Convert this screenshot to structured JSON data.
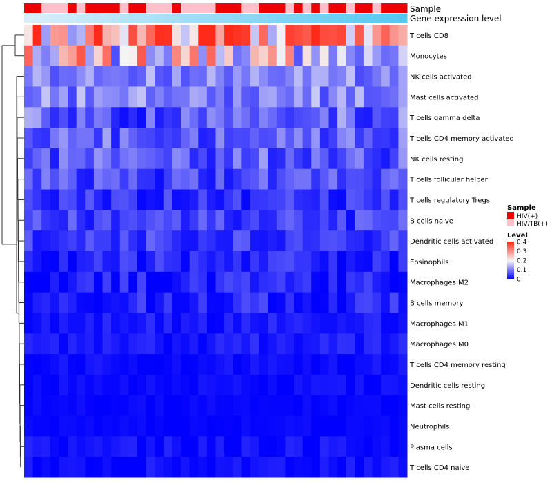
{
  "chart_data": {
    "type": "heatmap",
    "title": "",
    "annotation_labels": [
      "Sample",
      "Gene expression level"
    ],
    "rows": [
      "T cells CD8",
      "Monocytes",
      "NK cells activated",
      "Mast cells activated",
      "T cells gamma delta",
      "T cells CD4 memory activated",
      "NK cells resting",
      "T cells follicular helper",
      "T cells regulatory  Tregs",
      "B cells naive",
      "Dendritic cells activated",
      "Eosinophils",
      "Macrophages M2",
      "B cells memory",
      "Macrophages M1",
      "Macrophages M0",
      "T cells CD4 memory resting",
      "Dendritic cells resting",
      "Mast cells resting",
      "Neutrophils",
      "Plasma cells",
      "T cells CD4 naive"
    ],
    "n_samples": 44,
    "sample_groups": [
      "HIV(+)",
      "HIV(+)",
      "HIV/TB(+)",
      "HIV/TB(+)",
      "HIV/TB(+)",
      "HIV(+)",
      "HIV/TB(+)",
      "HIV(+)",
      "HIV(+)",
      "HIV(+)",
      "HIV(+)",
      "HIV/TB(+)",
      "HIV(+)",
      "HIV(+)",
      "HIV/TB(+)",
      "HIV/TB(+)",
      "HIV/TB(+)",
      "HIV(+)",
      "HIV/TB(+)",
      "HIV/TB(+)",
      "HIV/TB(+)",
      "HIV/TB(+)",
      "HIV(+)",
      "HIV(+)",
      "HIV(+)",
      "HIV/TB(+)",
      "HIV/TB(+)",
      "HIV(+)",
      "HIV(+)",
      "HIV(+)",
      "HIV/TB(+)",
      "HIV(+)",
      "HIV/TB(+)",
      "HIV(+)",
      "HIV/TB(+)",
      "HIV(+)",
      "HIV(+)",
      "HIV/TB(+)",
      "HIV(+)",
      "HIV(+)",
      "HIV/TB(+)",
      "HIV(+)",
      "HIV(+)",
      "HIV(+)"
    ],
    "legend": {
      "sample_title": "Sample",
      "groups": [
        {
          "label": "HIV(+)",
          "color": "#ee0000"
        },
        {
          "label": "HIV/TB(+)",
          "color": "#ffc0cb"
        }
      ],
      "level_title": "Level",
      "level_ticks": [
        "0.4",
        "0.3",
        "0.2",
        "0.1",
        "0"
      ],
      "level_range": [
        0,
        0.4
      ],
      "position": "right"
    },
    "colors": {
      "low": "#0000ff",
      "mid": "#f4f4f4",
      "high": "#ff2a1a",
      "expression_bar_start": "#d8eefa",
      "expression_bar_end": "#55c8f0"
    },
    "row_levels": [
      0.27,
      0.21,
      0.11,
      0.11,
      0.08,
      0.08,
      0.07,
      0.06,
      0.04,
      0.05,
      0.05,
      0.03,
      0.025,
      0.03,
      0.02,
      0.02,
      0.01,
      0.008,
      0.004,
      0.004,
      0.01,
      0.01
    ],
    "row_spread": [
      0.12,
      0.11,
      0.035,
      0.04,
      0.05,
      0.04,
      0.045,
      0.035,
      0.025,
      0.03,
      0.025,
      0.025,
      0.025,
      0.025,
      0.015,
      0.015,
      0.01,
      0.01,
      0.006,
      0.006,
      0.015,
      0.015
    ]
  }
}
